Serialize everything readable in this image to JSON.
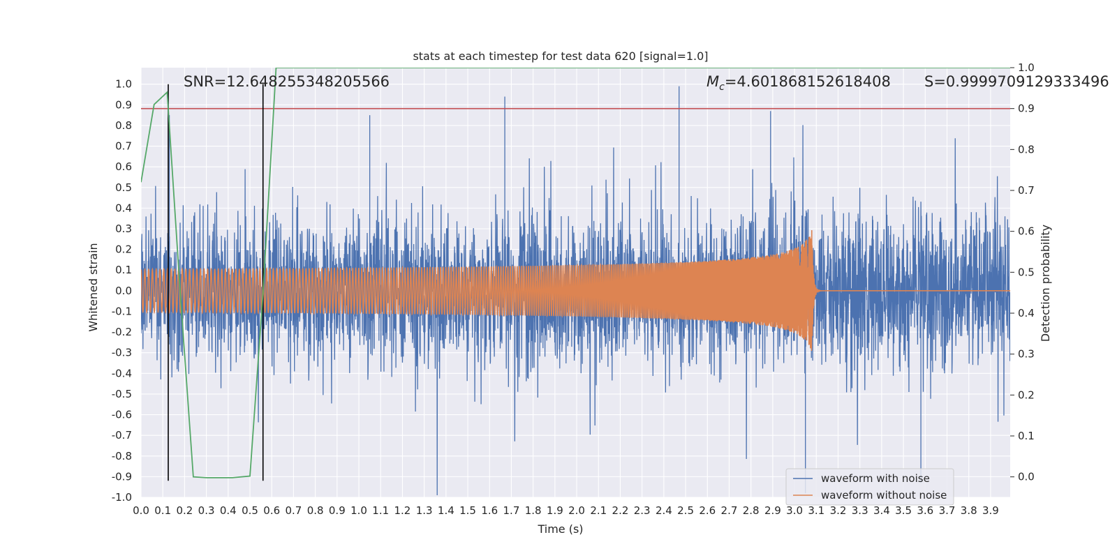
{
  "chart_data": {
    "type": "line",
    "title": "stats at each timestep for test data 620 [signal=1.0]",
    "xlabel": "Time (s)",
    "ylabel": "Whitened strain",
    "y2label": "Detection probability",
    "xlim": [
      0.0,
      3.99
    ],
    "ylim": [
      -1.0,
      1.08
    ],
    "y2lim": [
      -0.05,
      1.0
    ],
    "xticks": [
      0.0,
      0.1,
      0.2,
      0.3,
      0.4,
      0.5,
      0.6,
      0.7,
      0.8,
      0.9,
      1.0,
      1.1,
      1.2,
      1.3,
      1.4,
      1.5,
      1.6,
      1.7,
      1.8,
      1.9,
      2.0,
      2.1,
      2.2,
      2.3,
      2.4,
      2.5,
      2.6,
      2.7,
      2.8,
      2.9,
      3.0,
      3.1,
      3.2,
      3.3,
      3.4,
      3.5,
      3.6,
      3.7,
      3.8,
      3.9
    ],
    "yticks": [
      -1.0,
      -0.9,
      -0.8,
      -0.7,
      -0.6,
      -0.5,
      -0.4,
      -0.3,
      -0.2,
      -0.1,
      0.0,
      0.1,
      0.2,
      0.3,
      0.4,
      0.5,
      0.6,
      0.7,
      0.8,
      0.9,
      1.0
    ],
    "y2ticks": [
      0.0,
      0.1,
      0.2,
      0.3,
      0.4,
      0.5,
      0.6,
      0.7,
      0.8,
      0.9,
      1.0
    ],
    "grid": true,
    "legend_position": "bottom-right",
    "annotations": {
      "snr": "SNR=12.648255348205566",
      "mc": "=4.601868152618408",
      "mc_symbol": "M",
      "mc_subscript": "c",
      "s": "S=0.9999709129333496"
    },
    "series": [
      {
        "name": "waveform with noise",
        "color": "#4c72b0",
        "description": "whitened noisy strain sampled densely from 0.0 to 3.99 s",
        "spike_peaks": [
          {
            "x": 0.13,
            "y": 0.85
          },
          {
            "x": 1.05,
            "y": 0.85
          },
          {
            "x": 1.67,
            "y": 0.94
          },
          {
            "x": 2.47,
            "y": 0.99
          },
          {
            "x": 2.89,
            "y": 0.87
          },
          {
            "x": 3.05,
            "y": -0.98
          },
          {
            "x": 3.58,
            "y": -0.93
          }
        ],
        "typical_amplitude": 0.35
      },
      {
        "name": "waveform without noise",
        "color": "#dd8452",
        "description": "chirp signal, growing amplitude up to merger near 3.08 s then ringdown",
        "merger_time": 3.08,
        "amplitude_start": 0.04,
        "amplitude_at_merger": 0.3
      },
      {
        "name": "",
        "axis": "right",
        "color": "#55a868",
        "x": [
          0.0,
          0.06,
          0.12,
          0.18,
          0.24,
          0.3,
          0.36,
          0.42,
          0.5,
          0.56,
          0.62,
          1.0,
          2.0,
          3.0,
          3.99
        ],
        "y": [
          0.72,
          0.91,
          0.94,
          0.45,
          0.0,
          -0.002,
          -0.002,
          -0.002,
          0.002,
          0.45,
          1.0,
          1.0,
          1.0,
          1.0,
          1.0
        ]
      }
    ],
    "threshold": {
      "axis": "right",
      "value": 0.9,
      "color": "#c44e52"
    },
    "vlines": [
      {
        "x": 0.125,
        "ymin": -0.92,
        "ymax": 1.0,
        "color": "#000000"
      },
      {
        "x": 0.56,
        "ymin": -0.92,
        "ymax": 1.0,
        "color": "#000000"
      }
    ]
  }
}
